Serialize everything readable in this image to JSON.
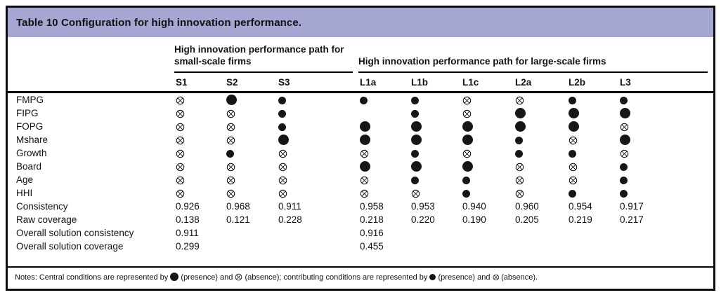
{
  "title": "Table 10 Configuration for high innovation performance.",
  "colors": {
    "title_band": "#a5a6d2",
    "border": "#0d0d0d",
    "symbol": "#161616"
  },
  "groups": [
    {
      "id": "small-scale",
      "label": "High innovation performance path for small-scale firms",
      "columns": [
        "S1",
        "S2",
        "S3"
      ]
    },
    {
      "id": "large-scale",
      "label": "High innovation performance path for large-scale firms",
      "columns": [
        "L1a",
        "L1b",
        "L1c",
        "L2a",
        "L2b",
        "L3"
      ]
    }
  ],
  "columns": [
    "S1",
    "S2",
    "S3",
    "L1a",
    "L1b",
    "L1c",
    "L2a",
    "L2b",
    "L3"
  ],
  "symbol_legend": {
    "P": "central-presence (large filled circle)",
    "A": "central-absence (large crossed circle)",
    "p": "contributing-presence (small filled circle)",
    "a": "contributing-absence (small crossed circle)",
    "": "blank (condition not relevant)"
  },
  "condition_rows": [
    {
      "label": "FMPG",
      "cells": [
        "a",
        "P",
        "p",
        "p",
        "p",
        "a",
        "a",
        "p",
        "p"
      ]
    },
    {
      "label": "FIPG",
      "cells": [
        "a",
        "a",
        "p",
        "",
        "p",
        "a",
        "P",
        "P",
        "P"
      ]
    },
    {
      "label": "FOPG",
      "cells": [
        "a",
        "a",
        "p",
        "P",
        "P",
        "P",
        "P",
        "P",
        "a"
      ]
    },
    {
      "label": "Mshare",
      "cells": [
        "a",
        "a",
        "P",
        "P",
        "P",
        "P",
        "p",
        "a",
        "P"
      ]
    },
    {
      "label": "Growth",
      "cells": [
        "a",
        "p",
        "a",
        "a",
        "p",
        "a",
        "p",
        "p",
        "a"
      ]
    },
    {
      "label": "Board",
      "cells": [
        "a",
        "a",
        "a",
        "P",
        "P",
        "P",
        "a",
        "a",
        "p"
      ]
    },
    {
      "label": "Age",
      "cells": [
        "a",
        "a",
        "a",
        "a",
        "p",
        "p",
        "a",
        "a",
        "p"
      ]
    },
    {
      "label": "HHI",
      "cells": [
        "a",
        "a",
        "a",
        "a",
        "a",
        "p",
        "a",
        "p",
        "p"
      ]
    }
  ],
  "metric_rows": [
    {
      "label": "Consistency",
      "values": [
        "0.926",
        "0.968",
        "0.911",
        "0.958",
        "0.953",
        "0.940",
        "0.960",
        "0.954",
        "0.917"
      ]
    },
    {
      "label": "Raw coverage",
      "values": [
        "0.138",
        "0.121",
        "0.228",
        "0.218",
        "0.220",
        "0.190",
        "0.205",
        "0.219",
        "0.217"
      ]
    },
    {
      "label": "Overall solution consistency",
      "values": [
        "0.911",
        "",
        "",
        "0.916",
        "",
        "",
        "",
        "",
        ""
      ]
    },
    {
      "label": "Overall solution coverage",
      "values": [
        "0.299",
        "",
        "",
        "0.455",
        "",
        "",
        "",
        "",
        ""
      ]
    }
  ],
  "notes": {
    "segments": [
      {
        "t": "text",
        "v": "Notes: Central conditions are represented by "
      },
      {
        "t": "sym",
        "v": "P"
      },
      {
        "t": "text",
        "v": " (presence) and "
      },
      {
        "t": "sym",
        "v": "A"
      },
      {
        "t": "text",
        "v": " (absence); contributing conditions are represented by "
      },
      {
        "t": "sym",
        "v": "p"
      },
      {
        "t": "text",
        "v": " (presence) and "
      },
      {
        "t": "sym",
        "v": "a"
      },
      {
        "t": "text",
        "v": " (absence)."
      }
    ]
  }
}
